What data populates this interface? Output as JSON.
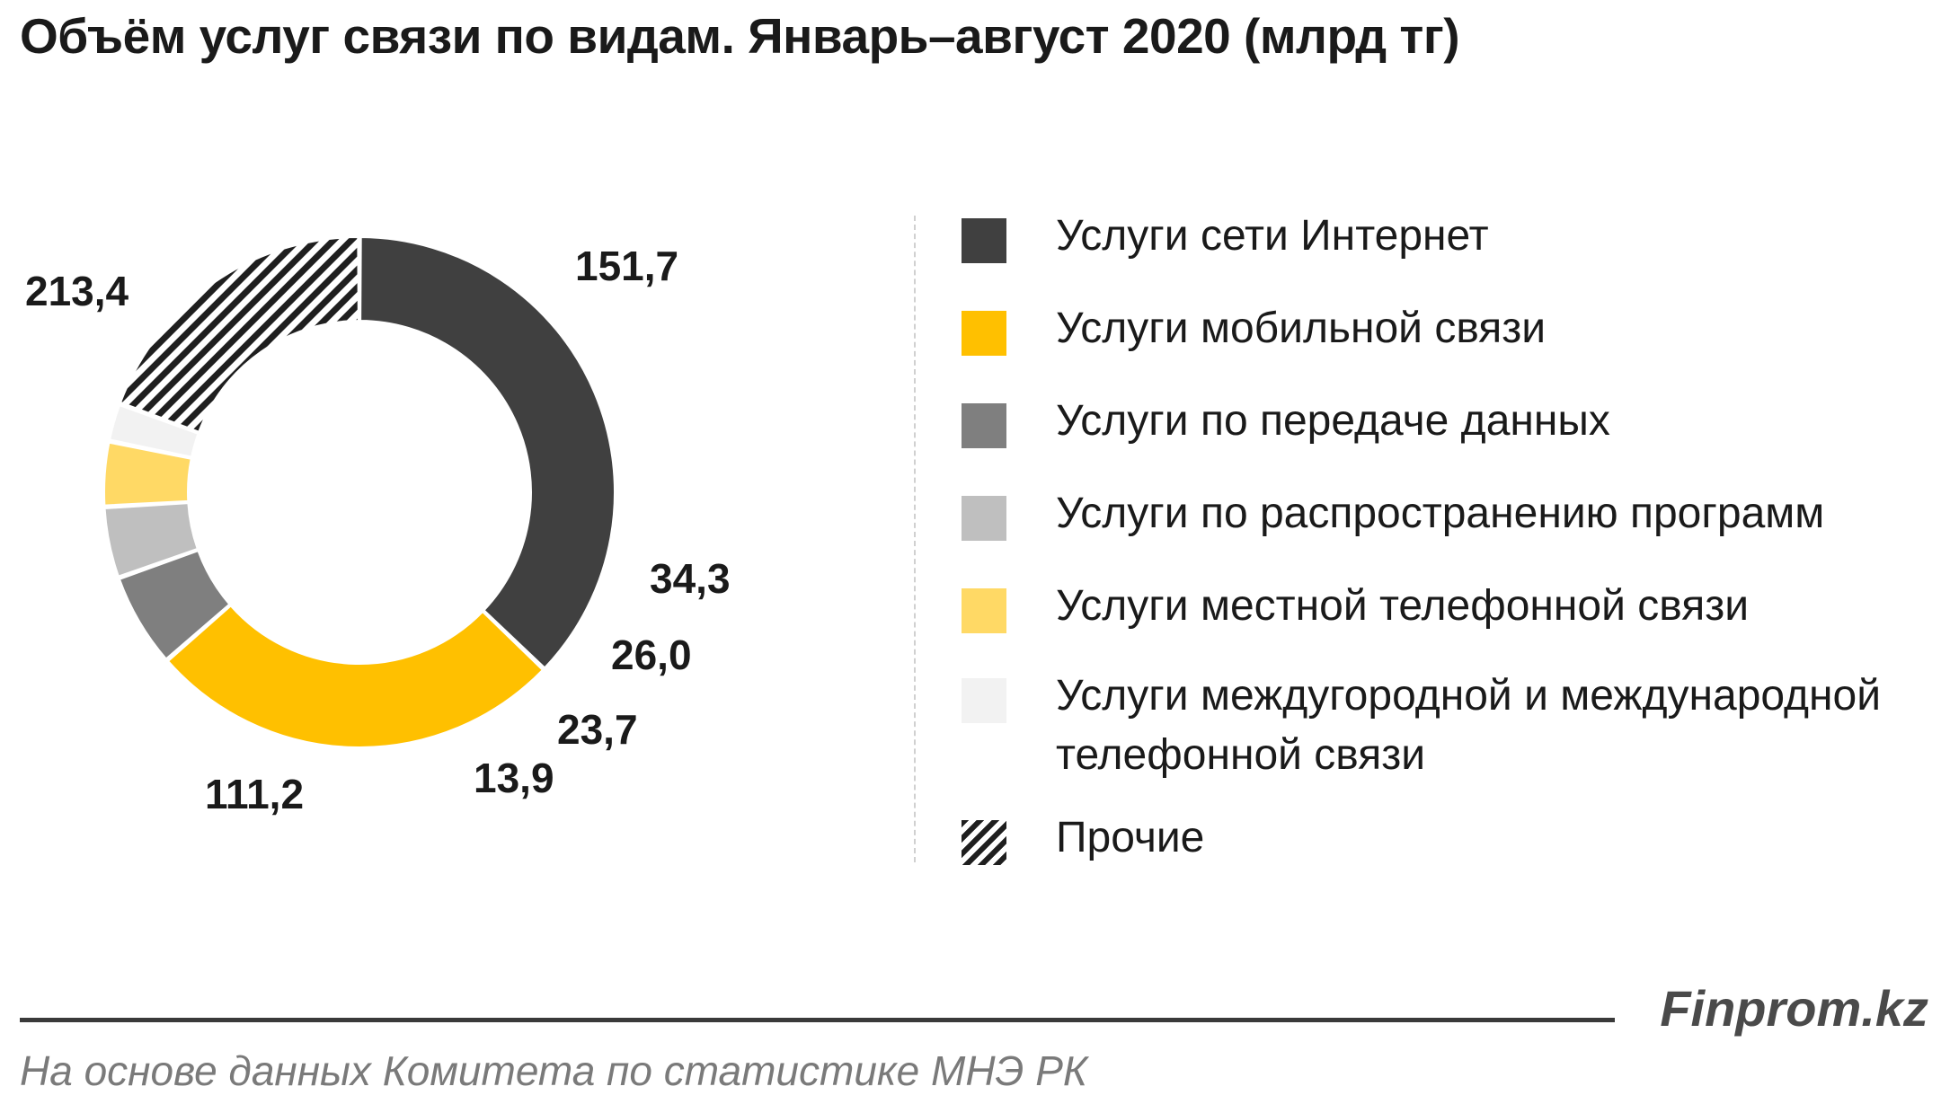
{
  "title": "Объём услуг связи по видам. Январь–август 2020 (млрд тг)",
  "chart_data": {
    "type": "pie",
    "variant": "donut",
    "unit": "млрд тг",
    "categories": [
      "Услуги сети Интернет",
      "Услуги мобильной связи",
      "Услуги по передаче данных",
      "Услуги по распространению программ",
      "Услуги местной телефонной связи",
      "Услуги междугородной и международной телефонной связи",
      "Прочие"
    ],
    "values": [
      213.4,
      151.7,
      34.3,
      26.0,
      23.7,
      13.9,
      111.2
    ],
    "value_labels": [
      "213,4",
      "151,7",
      "34,3",
      "26,0",
      "23,7",
      "13,9",
      "111,2"
    ],
    "colors": [
      "#404040",
      "#ffc000",
      "#7f7f7f",
      "#bfbfbf",
      "#ffd965",
      "#f2f2f2",
      "hatched"
    ],
    "legend_position": "right"
  },
  "legend": {
    "items": [
      {
        "label": "Услуги сети Интернет",
        "color": "#404040"
      },
      {
        "label": "Услуги мобильной связи",
        "color": "#ffc000"
      },
      {
        "label": "Услуги по передаче данных",
        "color": "#7f7f7f"
      },
      {
        "label": "Услуги по распространению программ",
        "color": "#bfbfbf"
      },
      {
        "label": "Услуги местной телефонной связи",
        "color": "#ffd965"
      },
      {
        "label": "Услуги междугородной и международной телефонной связи",
        "color": "#f2f2f2"
      },
      {
        "label": "Прочие",
        "color": "hatched"
      }
    ]
  },
  "footer": {
    "brand": "Finprom.kz",
    "source": "На основе данных Комитета по статистике МНЭ РК"
  }
}
